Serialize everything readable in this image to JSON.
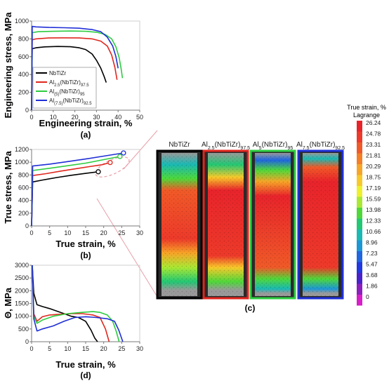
{
  "figure": {
    "panel_labels": [
      "(a)",
      "(b)",
      "(c)",
      "(d)"
    ]
  },
  "chart_data": [
    {
      "panel": "(a)",
      "type": "line",
      "xlabel": "Engineering strain, %",
      "ylabel": "Engineering stress, MPa",
      "xlim": [
        0,
        50
      ],
      "ylim": [
        0,
        1000
      ],
      "xticks": [
        0,
        10,
        20,
        30,
        40,
        50
      ],
      "yticks": [
        0,
        200,
        400,
        600,
        800,
        1000
      ],
      "grid": false,
      "legend_placement": "bottom-left",
      "series": [
        {
          "name": "NbTiZr",
          "label_parts": [
            [
              "NbTiZr",
              ""
            ]
          ],
          "color": "#000000",
          "x": [
            0,
            0.3,
            2,
            6,
            12,
            18,
            22,
            25,
            28,
            30,
            32,
            33.5,
            34.5
          ],
          "y": [
            0,
            690,
            700,
            710,
            715,
            712,
            700,
            680,
            630,
            560,
            470,
            380,
            310
          ]
        },
        {
          "name": "Al(2.5)(NbTiZr)97.5",
          "label_parts": [
            [
              "Al",
              ""
            ],
            [
              "2.5",
              "sub"
            ],
            [
              "(NbTiZr)",
              ""
            ],
            [
              "97.5",
              "sub"
            ]
          ],
          "color": "#e0261e",
          "x": [
            0,
            0.3,
            2,
            8,
            15,
            22,
            28,
            32,
            35,
            37,
            38.5,
            39.5
          ],
          "y": [
            0,
            790,
            800,
            810,
            812,
            810,
            800,
            775,
            720,
            620,
            480,
            340
          ]
        },
        {
          "name": "Al(5)(NbTiZr)95",
          "label_parts": [
            [
              "Al",
              ""
            ],
            [
              "(5)",
              "sub"
            ],
            [
              "(NbTiZr)",
              ""
            ],
            [
              "95",
              "sub"
            ]
          ],
          "color": "#2ecc40",
          "x": [
            0,
            0.3,
            3,
            10,
            18,
            25,
            30,
            34,
            37,
            39,
            40.5,
            41.5,
            42
          ],
          "y": [
            0,
            870,
            880,
            885,
            888,
            885,
            875,
            850,
            800,
            710,
            590,
            450,
            360
          ]
        },
        {
          "name": "Al(7.5)(NbTiZr)92.5",
          "label_parts": [
            [
              "Al",
              ""
            ],
            [
              "(7.5)",
              "sub"
            ],
            [
              "(NbTiZr)",
              ""
            ],
            [
              "92.5",
              "sub"
            ]
          ],
          "color": "#1f2fd6",
          "x": [
            0,
            0.3,
            2,
            8,
            15,
            22,
            28,
            32,
            35,
            37.5,
            39,
            40
          ],
          "y": [
            0,
            940,
            935,
            928,
            925,
            920,
            905,
            880,
            820,
            720,
            600,
            470
          ]
        }
      ]
    },
    {
      "panel": "(b)",
      "type": "line",
      "xlabel": "True strain, %",
      "ylabel": "True stress, MPa",
      "xlim": [
        0,
        30
      ],
      "ylim": [
        0,
        1200
      ],
      "xticks": [
        0,
        5,
        10,
        15,
        20,
        25,
        30
      ],
      "yticks": [
        0,
        200,
        400,
        600,
        800,
        1000,
        1200
      ],
      "grid": false,
      "series": [
        {
          "name": "NbTiZr",
          "color": "#000000",
          "x": [
            0,
            0.3,
            3,
            7,
            11,
            15,
            18.5
          ],
          "y": [
            0,
            690,
            720,
            760,
            795,
            825,
            850
          ]
        },
        {
          "name": "Al(2.5)(NbTiZr)97.5",
          "color": "#e0261e",
          "x": [
            0,
            0.3,
            4,
            8,
            12,
            16,
            19.5,
            21.8
          ],
          "y": [
            0,
            790,
            820,
            860,
            895,
            930,
            960,
            995
          ]
        },
        {
          "name": "Al(5)(NbTiZr)95",
          "color": "#2ecc40",
          "x": [
            0,
            0.3,
            5,
            10,
            15,
            20,
            24.5
          ],
          "y": [
            0,
            870,
            905,
            945,
            985,
            1040,
            1090
          ]
        },
        {
          "name": "Al(7.5)(NbTiZr)92.5",
          "color": "#1f2fd6",
          "x": [
            0,
            0.3,
            5,
            10,
            15,
            20,
            25.5
          ],
          "y": [
            0,
            940,
            970,
            1010,
            1050,
            1095,
            1145
          ]
        }
      ],
      "end_markers": [
        {
          "x": 18.5,
          "y": 850,
          "color": "#000000"
        },
        {
          "x": 21.8,
          "y": 995,
          "color": "#e0261e"
        },
        {
          "x": 24.5,
          "y": 1090,
          "color": "#2ecc40"
        },
        {
          "x": 25.5,
          "y": 1145,
          "color": "#1f2fd6"
        }
      ]
    },
    {
      "panel": "(d)",
      "type": "line",
      "xlabel": "True strain, %",
      "ylabel": "Θ, MPa",
      "xlim": [
        0,
        30
      ],
      "ylim": [
        0,
        3000
      ],
      "xticks": [
        0,
        5,
        10,
        15,
        20,
        25,
        30
      ],
      "yticks": [
        0,
        500,
        1000,
        1500,
        2000,
        2500,
        3000
      ],
      "grid": false,
      "series": [
        {
          "name": "NbTiZr",
          "color": "#000000",
          "x": [
            0.2,
            0.6,
            1.5,
            3,
            5,
            7,
            9,
            11,
            13,
            15,
            16.5,
            17.5,
            18.3
          ],
          "y": [
            3000,
            1900,
            1450,
            1380,
            1300,
            1200,
            1100,
            1000,
            950,
            800,
            450,
            150,
            0
          ]
        },
        {
          "name": "Al(2.5)(NbTiZr)97.5",
          "color": "#e0261e",
          "x": [
            0.2,
            0.6,
            1.5,
            3,
            5,
            8,
            11,
            14,
            17,
            19,
            20.5,
            21.5
          ],
          "y": [
            3000,
            1100,
            800,
            980,
            1050,
            1080,
            1100,
            1100,
            1050,
            950,
            500,
            0
          ]
        },
        {
          "name": "Al(5)(NbTiZr)95",
          "color": "#2ecc40",
          "x": [
            0.2,
            0.6,
            1.5,
            3,
            6,
            10,
            14,
            17,
            19,
            21,
            22.5,
            23.5,
            24.3
          ],
          "y": [
            3000,
            1000,
            720,
            850,
            1000,
            1100,
            1150,
            1180,
            1150,
            1050,
            800,
            400,
            0
          ]
        },
        {
          "name": "Al(7.5)(NbTiZr)92.5",
          "color": "#1f2fd6",
          "x": [
            0.2,
            0.6,
            1.5,
            3,
            6,
            9,
            12,
            15,
            18,
            21,
            23,
            24.2,
            25.3
          ],
          "y": [
            3000,
            900,
            420,
            500,
            620,
            800,
            950,
            980,
            950,
            900,
            800,
            450,
            0
          ]
        }
      ]
    }
  ],
  "dic_panel": {
    "panel": "(c)",
    "specimens": [
      {
        "label_parts": [
          [
            "NbTiZr",
            ""
          ]
        ],
        "frame_color": "#000000"
      },
      {
        "label_parts": [
          [
            "Al",
            ""
          ],
          [
            "2.5",
            "sub"
          ],
          [
            "(NbTiZr)",
            ""
          ],
          [
            "97.5",
            "sub"
          ]
        ],
        "frame_color": "#e0261e"
      },
      {
        "label_parts": [
          [
            "Al",
            ""
          ],
          [
            "5",
            "sub"
          ],
          [
            "(NbTiZr)",
            ""
          ],
          [
            "95",
            "sub"
          ]
        ],
        "frame_color": "#2ecc40"
      },
      {
        "label_parts": [
          [
            "Al",
            ""
          ],
          [
            "7.5",
            "sub"
          ],
          [
            "(NbTiZr)",
            ""
          ],
          [
            "92.5",
            "sub"
          ]
        ],
        "frame_color": "#1f2fd6"
      }
    ],
    "colorbar": {
      "title_line1": "True strain, %",
      "title_line2": "Lagrange",
      "ticks": [
        "26.24",
        "24.78",
        "23.31",
        "21.81",
        "20.29",
        "18.75",
        "17.19",
        "15.59",
        "13.98",
        "12.33",
        "10.66",
        "8.96",
        "7.23",
        "5.47",
        "3.68",
        "1.86",
        "0"
      ],
      "colors": [
        "#e8242b",
        "#ed3a2a",
        "#f05a28",
        "#f47f26",
        "#f7a527",
        "#f8c92a",
        "#eef02c",
        "#a9e833",
        "#4fd83a",
        "#22c874",
        "#1ab9b4",
        "#1c97d6",
        "#2066e0",
        "#2238e0",
        "#4a22cc",
        "#8d1fbd",
        "#d81ec8"
      ]
    }
  }
}
